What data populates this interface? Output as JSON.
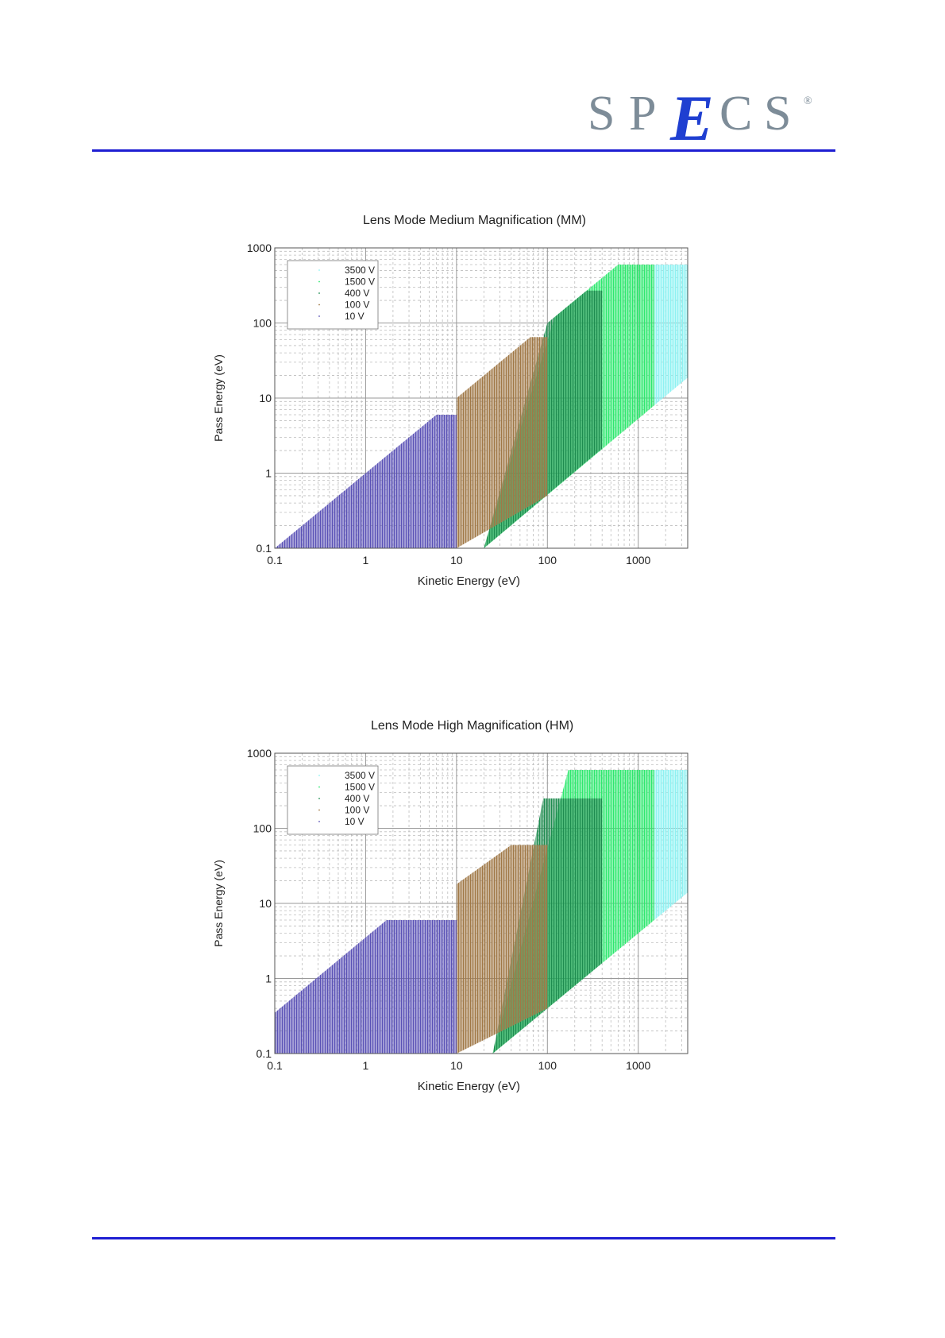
{
  "header": {
    "logo_text": "SPECS",
    "logo_letters": [
      "S",
      "P",
      "E",
      "C",
      "S"
    ],
    "registered_mark": "®",
    "accent_color": "#1e1ed2",
    "logo_color": "#7d8c98",
    "logo_e_color": "#1f3fd1"
  },
  "chart_data": [
    {
      "type": "area",
      "title": "Lens Mode Medium Magnification (MM)",
      "xlabel": "Kinetic Energy (eV)",
      "ylabel": "Pass Energy (eV)",
      "xscale": "log",
      "yscale": "log",
      "xlim": [
        0.1,
        3500
      ],
      "ylim": [
        0.1,
        1000
      ],
      "xticks": [
        "0.1",
        "1",
        "10",
        "100",
        "1000"
      ],
      "yticks": [
        "0.1",
        "1",
        "10",
        "100",
        "1000"
      ],
      "grid": true,
      "legend_position": "top-left",
      "legend": [
        "3500 V",
        "1500 V",
        "400 V",
        "100 V",
        "10 V"
      ],
      "series": [
        {
          "name": "3500 V",
          "color": "#8ef2f2",
          "x": [
            1500,
            3500,
            3500,
            1500
          ],
          "y": [
            8,
            18.7,
            600,
            600
          ]
        },
        {
          "name": "1500 V",
          "color": "#2ee86e",
          "x": [
            20,
            120,
            600,
            1500,
            1500
          ],
          "y": [
            0.1,
            120,
            600,
            600,
            8
          ]
        },
        {
          "name": "400 V",
          "color": "#1e8c50",
          "x": [
            20,
            100,
            270,
            400,
            400
          ],
          "y": [
            0.1,
            100,
            270,
            270,
            2.13
          ]
        },
        {
          "name": "100 V",
          "color": "#a07846",
          "x": [
            10,
            10,
            65,
            100,
            100
          ],
          "y": [
            0.1,
            10,
            65,
            65,
            0.5
          ]
        },
        {
          "name": "10 V",
          "color": "#5a52b6",
          "x": [
            0.1,
            6,
            10,
            10
          ],
          "y": [
            0.1,
            6,
            6,
            0.1
          ]
        }
      ]
    },
    {
      "type": "area",
      "title": "Lens Mode High Magnification (HM)",
      "xlabel": "Kinetic Energy (eV)",
      "ylabel": "Pass Energy (eV)",
      "xscale": "log",
      "yscale": "log",
      "xlim": [
        0.1,
        3500
      ],
      "ylim": [
        0.1,
        1000
      ],
      "xticks": [
        "0.1",
        "1",
        "10",
        "100",
        "1000"
      ],
      "yticks": [
        "0.1",
        "1",
        "10",
        "100",
        "1000"
      ],
      "grid": true,
      "legend_position": "top-left",
      "legend": [
        "3500 V",
        "1500 V",
        "400 V",
        "100 V",
        "10 V"
      ],
      "series": [
        {
          "name": "3500 V",
          "color": "#8ef2f2",
          "x": [
            1500,
            3500,
            3500,
            1500
          ],
          "y": [
            6,
            14,
            600,
            600
          ]
        },
        {
          "name": "1500 V",
          "color": "#2ee86e",
          "x": [
            25,
            170,
            1500,
            1500
          ],
          "y": [
            0.1,
            600,
            600,
            6
          ]
        },
        {
          "name": "400 V",
          "color": "#1e8c50",
          "x": [
            25,
            90,
            400,
            400
          ],
          "y": [
            0.1,
            250,
            250,
            1.6
          ]
        },
        {
          "name": "100 V",
          "color": "#a07846",
          "x": [
            10,
            10,
            40,
            100,
            100
          ],
          "y": [
            0.1,
            18,
            60,
            60,
            0.4
          ]
        },
        {
          "name": "10 V",
          "color": "#5a52b6",
          "x": [
            0.1,
            0.1,
            1.7,
            10,
            10
          ],
          "y": [
            0.1,
            0.35,
            6,
            6,
            0.1
          ]
        }
      ]
    }
  ]
}
